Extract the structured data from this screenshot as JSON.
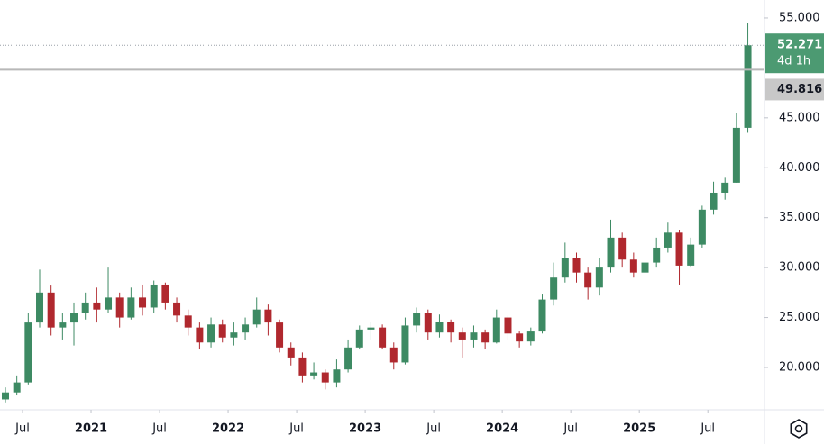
{
  "chart_data": {
    "type": "candlestick",
    "open": [
      16.8,
      17.5,
      18.5,
      24.5,
      27.5,
      24,
      24.5,
      25.5,
      26.5,
      25.8,
      27,
      25,
      27,
      26,
      28.3,
      26.5,
      25.2,
      24,
      22.5,
      24.3,
      23,
      23.5,
      24.3,
      25.8,
      24.5,
      22,
      21,
      19.2,
      19.5,
      18.5,
      19.8,
      22,
      23.8,
      24,
      22,
      20.5,
      24.2,
      25.5,
      23.5,
      24.6,
      23.5,
      22.8,
      23.5,
      22.5,
      25,
      23.4,
      22.6,
      23.6,
      26.8,
      29,
      31,
      29.5,
      28,
      30,
      33,
      30.8,
      29.5,
      30.5,
      32,
      33.5,
      30.2,
      32.3,
      35.8,
      37.5,
      38.5,
      44
    ],
    "high": [
      18,
      19.2,
      25.5,
      29.8,
      28.2,
      25.5,
      26.5,
      27.5,
      28,
      30,
      27.5,
      28,
      28.3,
      28.7,
      28.5,
      27,
      25.8,
      24.5,
      25,
      24.8,
      24.5,
      25,
      27,
      26.3,
      24.8,
      22.5,
      21.5,
      20.5,
      19.8,
      20.8,
      22.8,
      24.2,
      24.6,
      24.3,
      22.5,
      25,
      26,
      25.8,
      25.3,
      24.8,
      24,
      24.2,
      23.8,
      25.8,
      25.2,
      23.6,
      24,
      27.3,
      30.5,
      32.5,
      31.5,
      30,
      31,
      34.8,
      33.5,
      31.5,
      31.2,
      33,
      34.5,
      33.8,
      33,
      36.2,
      38.6,
      39,
      45.5,
      54.5
    ],
    "low": [
      16.5,
      17.2,
      18.3,
      24,
      23.2,
      22.8,
      22.2,
      24.8,
      24.5,
      25.5,
      24,
      24.8,
      25.2,
      25.5,
      25.8,
      24.5,
      23.2,
      21.8,
      22,
      22.5,
      22.2,
      22.8,
      24,
      23.2,
      21.5,
      20.2,
      18.5,
      18.8,
      17.8,
      18,
      19.5,
      21.8,
      22.8,
      21.8,
      19.8,
      20.3,
      23.5,
      22.8,
      23,
      22.5,
      21,
      22,
      21.8,
      22.4,
      22.8,
      22,
      22.2,
      23.4,
      26.2,
      28.5,
      28.5,
      26.8,
      27.2,
      29.5,
      30,
      29,
      29,
      30,
      31.5,
      28.3,
      30,
      32,
      35.3,
      36.8,
      38.5,
      43.5
    ],
    "close": [
      17.5,
      18.5,
      24.5,
      27.5,
      24,
      24.5,
      25.5,
      26.5,
      25.8,
      27,
      25,
      27,
      26,
      28.3,
      26.5,
      25.2,
      24,
      22.5,
      24.3,
      23,
      23.5,
      24.3,
      25.8,
      24.5,
      22,
      21,
      19.2,
      19.5,
      18.5,
      19.8,
      22,
      23.8,
      24,
      22,
      20.5,
      24.2,
      25.5,
      23.5,
      24.6,
      23.5,
      22.8,
      23.5,
      22.5,
      25,
      23.4,
      22.6,
      23.6,
      26.8,
      29,
      31,
      29.5,
      28,
      30,
      33,
      30.8,
      29.5,
      30.5,
      32,
      33.5,
      30.2,
      32.3,
      35.8,
      37.5,
      38.5,
      44,
      52.271
    ],
    "up_color": "#3d8a63",
    "down_color": "#b0282e",
    "ylim": [
      15.76,
      56.8
    ],
    "yticks": [
      {
        "value": 55,
        "label": "55.000"
      },
      {
        "value": 45,
        "label": "45.000"
      },
      {
        "value": 40,
        "label": "40.000"
      },
      {
        "value": 35,
        "label": "35.000"
      },
      {
        "value": 30,
        "label": "30.000"
      },
      {
        "value": 25,
        "label": "25.000"
      },
      {
        "value": 20,
        "label": "20.000"
      }
    ],
    "xticks": [
      {
        "value": 2,
        "label": "Jul"
      },
      {
        "value": 8,
        "label": "2021"
      },
      {
        "value": 14,
        "label": "Jul"
      },
      {
        "value": 20,
        "label": "2022"
      },
      {
        "value": 26,
        "label": "Jul"
      },
      {
        "value": 32,
        "label": "2023"
      },
      {
        "value": 38,
        "label": "Jul"
      },
      {
        "value": 44,
        "label": "2024"
      },
      {
        "value": 50,
        "label": "Jul"
      },
      {
        "value": 56,
        "label": "2025"
      },
      {
        "value": 62,
        "label": "Jul"
      }
    ],
    "last_price": 52.271,
    "countdown": "4d 1h",
    "last_price_color": "#4c9a72",
    "horizontal_line": 49.816,
    "horizontal_line_color": "#b8b8b8"
  }
}
